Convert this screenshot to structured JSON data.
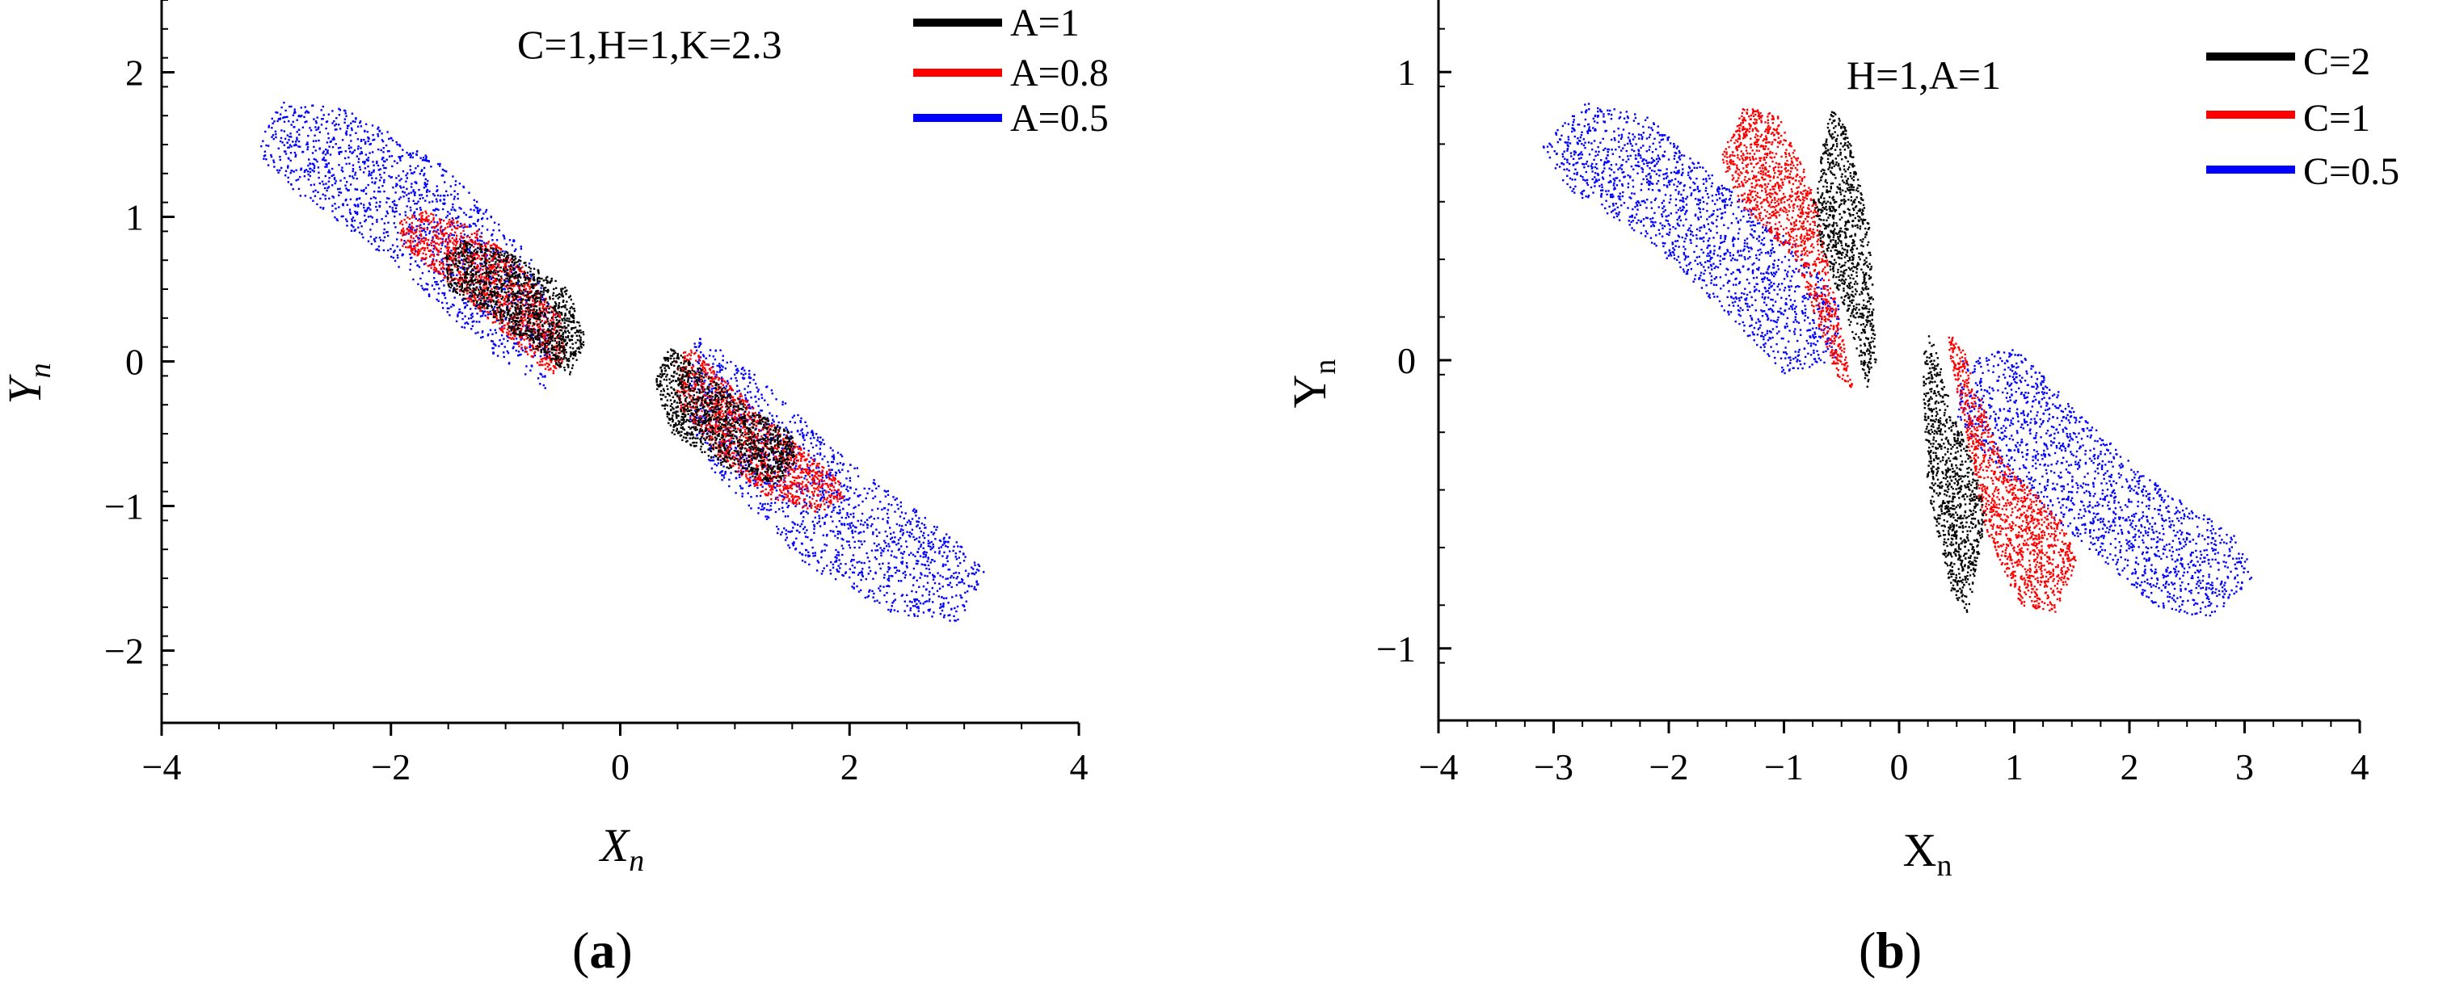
{
  "colors": {
    "black": "#000000",
    "red": "#ff0000",
    "blue": "#0000ff"
  },
  "chart_data": [
    {
      "type": "scatter",
      "panel_caption": {
        "open": "(",
        "letter": "a",
        "close": ")"
      },
      "xlabel": {
        "main": "X",
        "sub": "n"
      },
      "ylabel": {
        "main": "Y",
        "sub": "n"
      },
      "xlim": [
        -4,
        4
      ],
      "ylim": [
        -2.5,
        2.5
      ],
      "xticks": [
        -4,
        -2,
        0,
        2,
        4
      ],
      "xtick_labels": [
        "−4",
        "−2",
        "0",
        "2",
        "4"
      ],
      "yticks": [
        -2,
        -1,
        0,
        1,
        2
      ],
      "ytick_labels": [
        "−2",
        "−1",
        "0",
        "1",
        "2"
      ],
      "annotation": "C=1,H=1,K=2.3",
      "legend_position": "top-right",
      "series": [
        {
          "name": "A=0.5",
          "color": "#0000ff",
          "points": 3000,
          "density": 0.55,
          "regions": [
            {
              "polygon": [
                [
                  -3.2,
                  1.45
                ],
                [
                  -2.95,
                  1.8
                ],
                [
                  -2.4,
                  1.75
                ],
                [
                  -1.6,
                  1.4
                ],
                [
                  -0.8,
                  0.75
                ],
                [
                  -0.55,
                  0.3
                ],
                [
                  -0.65,
                  -0.2
                ],
                [
                  -1.2,
                  0.1
                ],
                [
                  -2.0,
                  0.7
                ],
                [
                  -2.8,
                  1.15
                ]
              ]
            },
            {
              "polygon": [
                [
                  3.2,
                  -1.45
                ],
                [
                  2.95,
                  -1.8
                ],
                [
                  2.4,
                  -1.75
                ],
                [
                  1.6,
                  -1.4
                ],
                [
                  0.8,
                  -0.75
                ],
                [
                  0.55,
                  -0.3
                ],
                [
                  0.65,
                  0.2
                ],
                [
                  1.2,
                  -0.1
                ],
                [
                  2.0,
                  -0.7
                ],
                [
                  2.8,
                  -1.15
                ]
              ]
            }
          ]
        },
        {
          "name": "A=0.8",
          "color": "#ff0000",
          "points": 2600,
          "density": 0.9,
          "regions": [
            {
              "polygon": [
                [
                  -1.95,
                  0.95
                ],
                [
                  -1.75,
                  1.05
                ],
                [
                  -1.3,
                  0.95
                ],
                [
                  -0.85,
                  0.65
                ],
                [
                  -0.5,
                  0.3
                ],
                [
                  -0.48,
                  0.0
                ],
                [
                  -0.6,
                  -0.1
                ],
                [
                  -0.95,
                  0.15
                ],
                [
                  -1.5,
                  0.55
                ],
                [
                  -1.9,
                  0.8
                ]
              ]
            },
            {
              "polygon": [
                [
                  1.95,
                  -0.95
                ],
                [
                  1.75,
                  -1.05
                ],
                [
                  1.3,
                  -0.95
                ],
                [
                  0.85,
                  -0.65
                ],
                [
                  0.5,
                  -0.3
                ],
                [
                  0.48,
                  0.0
                ],
                [
                  0.6,
                  0.1
                ],
                [
                  0.95,
                  -0.15
                ],
                [
                  1.5,
                  -0.55
                ],
                [
                  1.9,
                  -0.8
                ]
              ]
            }
          ]
        },
        {
          "name": "A=1",
          "color": "#000000",
          "points": 2400,
          "density": 0.9,
          "regions": [
            {
              "polygon": [
                [
                  -1.55,
                  0.7
                ],
                [
                  -1.35,
                  0.85
                ],
                [
                  -0.95,
                  0.75
                ],
                [
                  -0.45,
                  0.5
                ],
                [
                  -0.3,
                  0.15
                ],
                [
                  -0.42,
                  -0.1
                ],
                [
                  -0.7,
                  0.05
                ],
                [
                  -1.1,
                  0.3
                ],
                [
                  -1.5,
                  0.5
                ]
              ]
            },
            {
              "polygon": [
                [
                  1.55,
                  -0.7
                ],
                [
                  1.35,
                  -0.85
                ],
                [
                  0.95,
                  -0.75
                ],
                [
                  0.45,
                  -0.5
                ],
                [
                  0.3,
                  -0.15
                ],
                [
                  0.42,
                  0.1
                ],
                [
                  0.7,
                  -0.05
                ],
                [
                  1.1,
                  -0.3
                ],
                [
                  1.5,
                  -0.5
                ]
              ]
            }
          ]
        }
      ]
    },
    {
      "type": "scatter",
      "panel_caption": {
        "open": "(",
        "letter": "b",
        "close": ")"
      },
      "xlabel": {
        "main": "X",
        "sub": "n"
      },
      "ylabel": {
        "main": "Y",
        "sub": "n"
      },
      "xlim": [
        -4,
        4
      ],
      "ylim": [
        -1.25,
        1.25
      ],
      "xticks": [
        -4,
        -3,
        -2,
        -1,
        0,
        1,
        2,
        3,
        4
      ],
      "xtick_labels": [
        "−4",
        "−3",
        "−2",
        "−1",
        "0",
        "1",
        "2",
        "3",
        "4"
      ],
      "yticks": [
        -1,
        0,
        1
      ],
      "ytick_labels": [
        "−1",
        "0",
        "1"
      ],
      "annotation": "H=1,A=1",
      "legend_position": "top-right",
      "series": [
        {
          "name": "C=0.5",
          "color": "#0000ff",
          "points": 3200,
          "density": 0.95,
          "regions": [
            {
              "polygon": [
                [
                  -3.1,
                  0.75
                ],
                [
                  -2.7,
                  0.9
                ],
                [
                  -2.2,
                  0.85
                ],
                [
                  -1.5,
                  0.6
                ],
                [
                  -0.9,
                  0.4
                ],
                [
                  -0.5,
                  0.2
                ],
                [
                  -0.55,
                  0.0
                ],
                [
                  -1.0,
                  -0.05
                ],
                [
                  -1.6,
                  0.2
                ],
                [
                  -2.3,
                  0.45
                ],
                [
                  -2.9,
                  0.6
                ]
              ]
            },
            {
              "polygon": [
                [
                  3.1,
                  -0.75
                ],
                [
                  2.7,
                  -0.9
                ],
                [
                  2.2,
                  -0.85
                ],
                [
                  1.5,
                  -0.6
                ],
                [
                  0.9,
                  -0.4
                ],
                [
                  0.5,
                  -0.2
                ],
                [
                  0.55,
                  0.0
                ],
                [
                  1.0,
                  0.05
                ],
                [
                  1.6,
                  -0.2
                ],
                [
                  2.3,
                  -0.45
                ],
                [
                  2.9,
                  -0.6
                ]
              ]
            }
          ]
        },
        {
          "name": "C=1",
          "color": "#ff0000",
          "points": 2400,
          "density": 0.9,
          "regions": [
            {
              "polygon": [
                [
                  -1.55,
                  0.7
                ],
                [
                  -1.35,
                  0.88
                ],
                [
                  -1.05,
                  0.85
                ],
                [
                  -0.75,
                  0.6
                ],
                [
                  -0.5,
                  0.1
                ],
                [
                  -0.4,
                  -0.1
                ],
                [
                  -0.55,
                  -0.05
                ],
                [
                  -0.9,
                  0.35
                ],
                [
                  -1.4,
                  0.55
                ]
              ]
            },
            {
              "polygon": [
                [
                  1.55,
                  -0.7
                ],
                [
                  1.35,
                  -0.88
                ],
                [
                  1.05,
                  -0.85
                ],
                [
                  0.75,
                  -0.6
                ],
                [
                  0.5,
                  -0.1
                ],
                [
                  0.4,
                  0.1
                ],
                [
                  0.55,
                  0.05
                ],
                [
                  0.9,
                  -0.35
                ],
                [
                  1.4,
                  -0.55
                ]
              ]
            }
          ]
        },
        {
          "name": "C=2",
          "color": "#000000",
          "points": 1800,
          "density": 0.9,
          "regions": [
            {
              "polygon": [
                [
                  -0.75,
                  0.55
                ],
                [
                  -0.6,
                  0.88
                ],
                [
                  -0.45,
                  0.8
                ],
                [
                  -0.25,
                  0.45
                ],
                [
                  -0.2,
                  0.0
                ],
                [
                  -0.27,
                  -0.1
                ],
                [
                  -0.45,
                  0.15
                ],
                [
                  -0.68,
                  0.4
                ]
              ]
            },
            {
              "polygon": [
                [
                  0.75,
                  -0.55
                ],
                [
                  0.6,
                  -0.88
                ],
                [
                  0.45,
                  -0.8
                ],
                [
                  0.25,
                  -0.45
                ],
                [
                  0.2,
                  0.0
                ],
                [
                  0.27,
                  0.1
                ],
                [
                  0.45,
                  -0.15
                ],
                [
                  0.68,
                  -0.4
                ]
              ]
            }
          ]
        }
      ]
    }
  ]
}
